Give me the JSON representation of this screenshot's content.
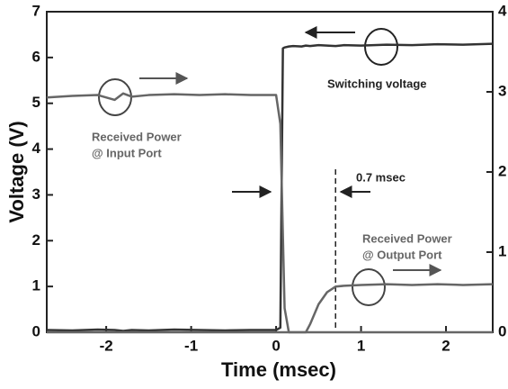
{
  "chart_data": {
    "type": "line",
    "xlabel": "Time (msec)",
    "ylabel": "Voltage (V)",
    "x": [
      -2.7,
      -2.4,
      -2.1,
      -1.9,
      -1.8,
      -1.7,
      -1.5,
      -1.2,
      -0.9,
      -0.6,
      -0.3,
      0,
      0.05,
      0.08,
      0.1,
      0.15,
      0.2,
      0.3,
      0.35,
      0.4,
      0.5,
      0.6,
      0.7,
      0.8,
      1.0,
      1.3,
      1.6,
      1.9,
      2.2,
      2.55
    ],
    "series": [
      {
        "color": "#333333",
        "values": [
          0.05,
          0.04,
          0.06,
          0.05,
          0.03,
          0.05,
          0.04,
          0.06,
          0.05,
          0.04,
          0.05,
          0.05,
          0.1,
          6.2,
          6.22,
          6.24,
          6.25,
          6.24,
          6.26,
          6.25,
          6.27,
          6.26,
          6.25,
          6.27,
          6.26,
          6.28,
          6.27,
          6.29,
          6.28,
          6.3
        ]
      },
      {
        "color": "#666666",
        "axis": "y2",
        "values": [
          2.93,
          2.95,
          2.96,
          2.9,
          2.98,
          2.94,
          2.96,
          2.97,
          2.96,
          2.97,
          2.96,
          2.96,
          2.6,
          1.2,
          0.3,
          0,
          0,
          0,
          0,
          0,
          0,
          0,
          0,
          0,
          0,
          0,
          0,
          0,
          0,
          0
        ]
      },
      {
        "color": "#666666",
        "axis": "y2",
        "values": [
          0,
          0,
          0,
          0,
          0,
          0,
          0,
          0,
          0,
          0,
          0,
          0,
          0,
          0,
          0,
          0,
          0,
          0,
          0,
          0.1,
          0.35,
          0.5,
          0.57,
          0.58,
          0.59,
          0.6,
          0.59,
          0.6,
          0.59,
          0.6
        ]
      }
    ],
    "xlim": [
      -2.7,
      2.55
    ],
    "xticks": [
      -2,
      -1,
      0,
      1,
      2
    ],
    "ylim": [
      0,
      7
    ],
    "yticks": [
      0,
      1,
      2,
      3,
      4,
      5,
      6,
      7
    ],
    "y2lim": [
      0,
      4
    ],
    "y2ticks": [
      0,
      1,
      2,
      3,
      4
    ],
    "marker_x": 0.7,
    "annotations": [
      "Switching voltage",
      "Received Power",
      "@ Input Port",
      "0.7 msec",
      "Received Power",
      "@ Output Port"
    ]
  }
}
